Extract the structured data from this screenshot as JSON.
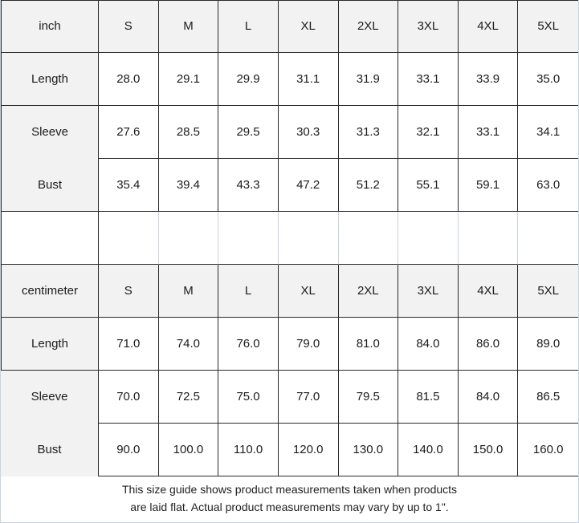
{
  "chart_data": {
    "type": "table",
    "sizes": [
      "S",
      "M",
      "L",
      "XL",
      "2XL",
      "3XL",
      "4XL",
      "5XL"
    ],
    "sections": [
      {
        "unit": "inch",
        "rows": [
          {
            "label": "Length",
            "values": [
              "28.0",
              "29.1",
              "29.9",
              "31.1",
              "31.9",
              "33.1",
              "33.9",
              "35.0"
            ]
          },
          {
            "label": "Sleeve",
            "values": [
              "27.6",
              "28.5",
              "29.5",
              "30.3",
              "31.3",
              "32.1",
              "33.1",
              "34.1"
            ]
          },
          {
            "label": "Bust",
            "values": [
              "35.4",
              "39.4",
              "43.3",
              "47.2",
              "51.2",
              "55.1",
              "59.1",
              "63.0"
            ]
          }
        ]
      },
      {
        "unit": "centimeter",
        "rows": [
          {
            "label": "Length",
            "values": [
              "71.0",
              "74.0",
              "76.0",
              "79.0",
              "81.0",
              "84.0",
              "86.0",
              "89.0"
            ]
          },
          {
            "label": "Sleeve",
            "values": [
              "70.0",
              "72.5",
              "75.0",
              "77.0",
              "79.5",
              "81.5",
              "84.0",
              "86.5"
            ]
          },
          {
            "label": "Bust",
            "values": [
              "90.0",
              "100.0",
              "110.0",
              "120.0",
              "130.0",
              "140.0",
              "150.0",
              "160.0"
            ]
          }
        ]
      }
    ]
  },
  "footer": {
    "line1": "This size guide shows product measurements taken when products",
    "line2": "are laid flat. Actual product measurements may vary by up to 1\"."
  },
  "colors": {
    "header_bg": "#f2f2f2",
    "border_dark": "#2a2a2a",
    "border_light": "#c9d3e0",
    "text": "#1c1c1c"
  }
}
